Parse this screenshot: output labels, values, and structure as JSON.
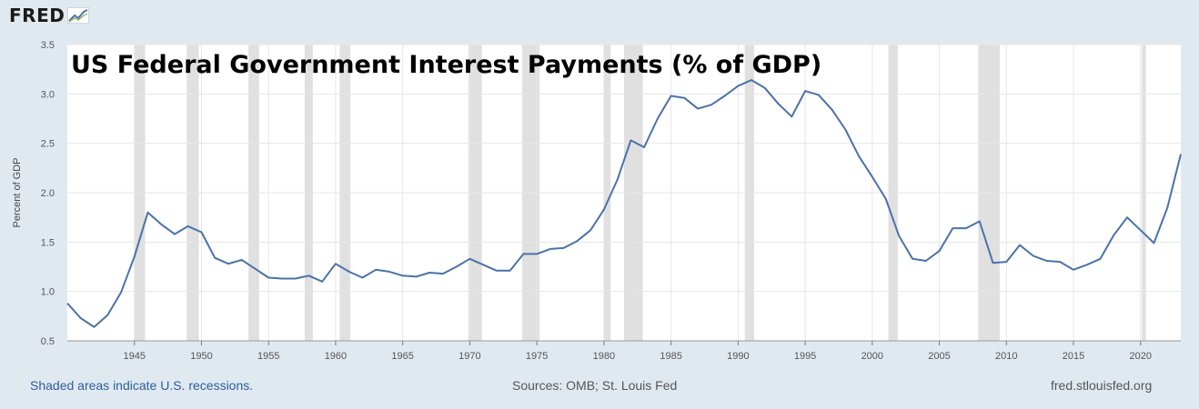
{
  "brand": {
    "name": "FRED",
    "icon": "chart-line-icon"
  },
  "footer": {
    "note": "Shaded areas indicate U.S. recessions.",
    "sources": "Sources: OMB; St. Louis Fed",
    "site": "fred.stlouisfed.org"
  },
  "colors": {
    "line": "#4a72a8",
    "recession": "#e0e0e0",
    "grid": "#e6e6e6",
    "background": "#e1e9f0",
    "link": "#2c5d9e"
  },
  "chart_data": {
    "type": "line",
    "title": "US Federal Government Interest Payments (% of GDP)",
    "ylabel": "Percent of GDP",
    "xlabel": "",
    "ylim": [
      0.5,
      3.5
    ],
    "xlim": [
      1940,
      2023
    ],
    "xticks": [
      1945,
      1950,
      1955,
      1960,
      1965,
      1970,
      1975,
      1980,
      1985,
      1990,
      1995,
      2000,
      2005,
      2010,
      2015,
      2020
    ],
    "yticks": [
      0.5,
      1.0,
      1.5,
      2.0,
      2.5,
      3.0,
      3.5
    ],
    "ytick_labels": [
      "0.5",
      "1.0",
      "1.5",
      "2.0",
      "2.5",
      "3.0",
      "3.5"
    ],
    "grid": true,
    "recessions": [
      [
        1945.0,
        1945.8
      ],
      [
        1948.9,
        1949.8
      ],
      [
        1953.5,
        1954.3
      ],
      [
        1957.7,
        1958.3
      ],
      [
        1960.3,
        1961.1
      ],
      [
        1969.9,
        1970.9
      ],
      [
        1973.9,
        1975.2
      ],
      [
        1980.0,
        1980.5
      ],
      [
        1981.5,
        1982.9
      ],
      [
        1990.5,
        1991.2
      ],
      [
        2001.2,
        2001.9
      ],
      [
        2007.9,
        2009.5
      ],
      [
        2020.1,
        2020.4
      ]
    ],
    "series": [
      {
        "x": [
          1940,
          1941,
          1942,
          1943,
          1944,
          1945,
          1946,
          1947,
          1948,
          1949,
          1950,
          1951,
          1952,
          1953,
          1954,
          1955,
          1956,
          1957,
          1958,
          1959,
          1960,
          1961,
          1962,
          1963,
          1964,
          1965,
          1966,
          1967,
          1968,
          1969,
          1970,
          1971,
          1972,
          1973,
          1974,
          1975,
          1976,
          1977,
          1978,
          1979,
          1980,
          1981,
          1982,
          1983,
          1984,
          1985,
          1986,
          1987,
          1988,
          1989,
          1990,
          1991,
          1992,
          1993,
          1994,
          1995,
          1996,
          1997,
          1998,
          1999,
          2000,
          2001,
          2002,
          2003,
          2004,
          2005,
          2006,
          2007,
          2008,
          2009,
          2010,
          2011,
          2012,
          2013,
          2014,
          2015,
          2016,
          2017,
          2018,
          2019,
          2020,
          2021,
          2022,
          2023
        ],
        "values": [
          0.88,
          0.73,
          0.64,
          0.76,
          0.99,
          1.35,
          1.8,
          1.68,
          1.58,
          1.66,
          1.6,
          1.34,
          1.28,
          1.32,
          1.23,
          1.14,
          1.13,
          1.13,
          1.16,
          1.1,
          1.28,
          1.2,
          1.14,
          1.22,
          1.2,
          1.16,
          1.15,
          1.19,
          1.18,
          1.25,
          1.33,
          1.27,
          1.21,
          1.21,
          1.38,
          1.38,
          1.43,
          1.44,
          1.51,
          1.62,
          1.83,
          2.13,
          2.53,
          2.46,
          2.75,
          2.98,
          2.96,
          2.85,
          2.89,
          2.98,
          3.08,
          3.14,
          3.06,
          2.9,
          2.77,
          3.03,
          2.99,
          2.84,
          2.64,
          2.37,
          2.16,
          1.94,
          1.56,
          1.33,
          1.31,
          1.41,
          1.64,
          1.64,
          1.71,
          1.29,
          1.3,
          1.47,
          1.36,
          1.31,
          1.3,
          1.22,
          1.27,
          1.33,
          1.57,
          1.75,
          1.62,
          1.49,
          1.85,
          2.39
        ]
      }
    ]
  }
}
